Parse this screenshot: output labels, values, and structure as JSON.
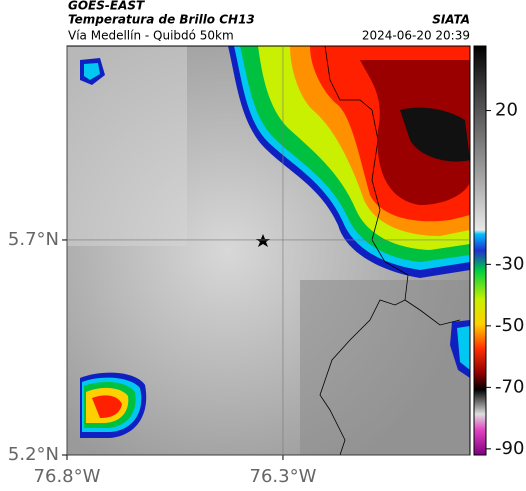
{
  "header": {
    "source": "GOES-EAST",
    "title": "Temperatura de Brillo CH13",
    "org": "SIATA",
    "subtitle": "Vía Medellín - Quibdó 50km",
    "date": "2024-06-20 20:39"
  },
  "map": {
    "xlim": [
      -76.8,
      -75.867
    ],
    "ylim": [
      5.2,
      6.151
    ],
    "xticks": [
      {
        "value": -76.8,
        "label": "76.8°W"
      },
      {
        "value": -76.3,
        "label": "76.3°W"
      }
    ],
    "yticks": [
      {
        "value": 5.7,
        "label": "5.7°N"
      },
      {
        "value": 5.2,
        "label": "5.2°N"
      }
    ]
  },
  "colorbar": {
    "clim": [
      -92,
      41
    ],
    "ticks": [
      20,
      -30,
      -50,
      -70,
      -90
    ]
  }
}
